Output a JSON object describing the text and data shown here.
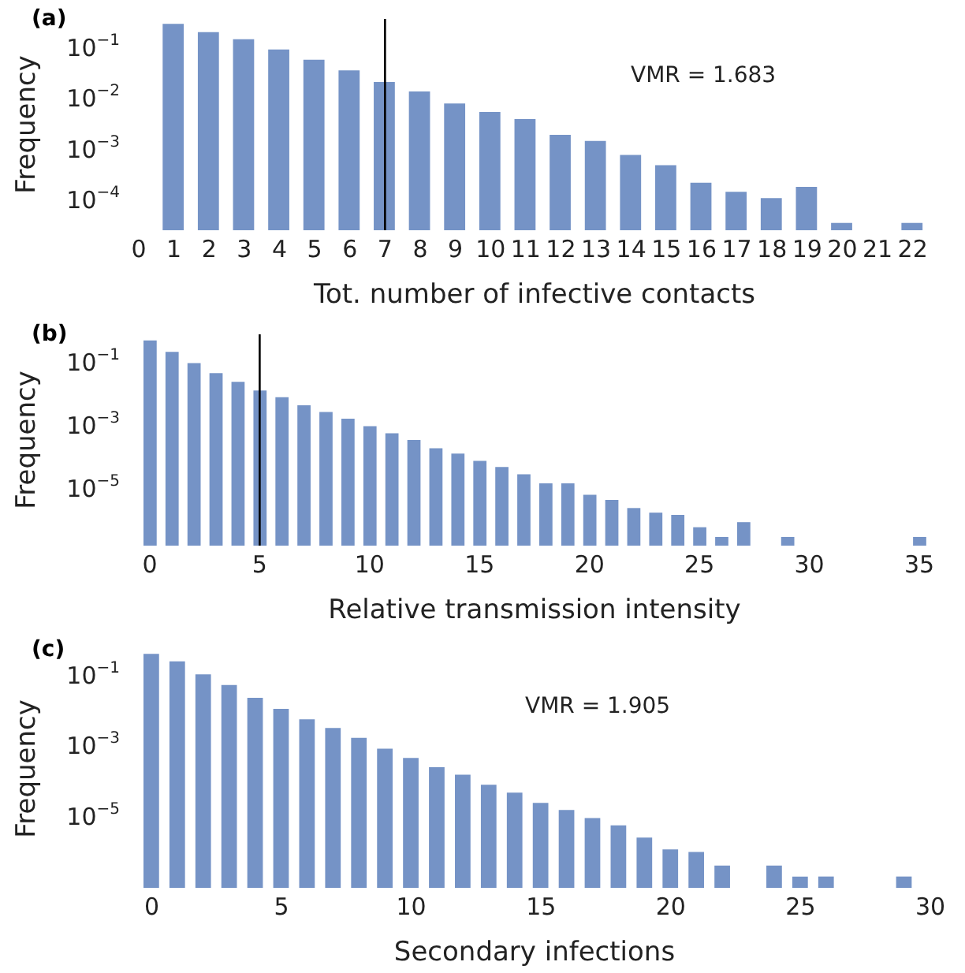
{
  "chart_data": [
    {
      "type": "bar",
      "title": "(a)",
      "xlabel": "Tot. number of infective contacts",
      "ylabel": "Frequency",
      "annotations": [
        "VMR = 1.683"
      ],
      "log": "y",
      "color": "#7593c6",
      "grid": false,
      "x": [
        1,
        2,
        3,
        4,
        5,
        6,
        7,
        8,
        9,
        10,
        11,
        12,
        13,
        14,
        15,
        16,
        17,
        18,
        19,
        20,
        22
      ],
      "values": [
        0.32,
        0.22,
        0.16,
        0.1,
        0.063,
        0.039,
        0.023,
        0.015,
        0.0087,
        0.0059,
        0.0043,
        0.0021,
        0.0016,
        0.00085,
        0.00053,
        0.00024,
        0.00016,
        0.00012,
        0.0002,
        3.9e-05,
        3.9e-05
      ],
      "xlim": [
        0,
        22.5
      ],
      "xticks": [
        0,
        1,
        2,
        3,
        4,
        5,
        6,
        7,
        8,
        9,
        10,
        11,
        12,
        13,
        14,
        15,
        16,
        17,
        18,
        19,
        20,
        21,
        22
      ],
      "ylim": [
        2.8e-05,
        0.4
      ],
      "yticks": [
        {
          "value": 0.1,
          "label": "10$^{−1}$"
        },
        {
          "value": 0.01,
          "label": "10$^{−2}$"
        },
        {
          "value": 0.001,
          "label": "10$^{−3}$"
        },
        {
          "value": 0.0001,
          "label": "10$^{−4}$"
        }
      ],
      "ref_lines": [
        {
          "axis": "x",
          "value": 7,
          "color": "#000000"
        }
      ]
    },
    {
      "type": "bar",
      "title": "(b)",
      "xlabel": "Relative transmission intensity",
      "ylabel": "Frequency",
      "log": "y",
      "color": "#7593c6",
      "grid": false,
      "x": [
        0,
        1,
        2,
        3,
        4,
        5,
        6,
        7,
        8,
        9,
        10,
        11,
        12,
        13,
        14,
        15,
        16,
        17,
        18,
        19,
        20,
        21,
        22,
        23,
        24,
        25,
        26,
        27,
        29,
        35
      ],
      "values": [
        0.58,
        0.25,
        0.11,
        0.053,
        0.028,
        0.015,
        0.0092,
        0.0051,
        0.0031,
        0.0019,
        0.0011,
        0.00066,
        0.0004,
        0.00022,
        0.00015,
        8.8e-05,
        5.6e-05,
        3.3e-05,
        1.7e-05,
        1.7e-05,
        7.4e-06,
        5.1e-06,
        2.8e-06,
        2e-06,
        1.7e-06,
        6.9e-07,
        3.4e-07,
        1e-06,
        3.4e-07,
        3.4e-07
      ],
      "xlim": [
        -0.5,
        35.5
      ],
      "xticks": [
        0,
        5,
        10,
        15,
        20,
        25,
        30,
        35
      ],
      "ylim": [
        1.8e-07,
        0.9
      ],
      "yticks": [
        {
          "value": 0.1,
          "label": "10$^{−1}$"
        },
        {
          "value": 0.001,
          "label": "10$^{−3}$"
        },
        {
          "value": 1e-05,
          "label": "10$^{−5}$"
        }
      ],
      "ref_lines": [
        {
          "axis": "x",
          "value": 5,
          "color": "#000000"
        }
      ]
    },
    {
      "type": "bar",
      "title": "(c)",
      "xlabel": "Secondary infections",
      "ylabel": "Frequency",
      "annotations": [
        "VMR = 1.905"
      ],
      "log": "y",
      "color": "#7593c6",
      "grid": false,
      "x": [
        0,
        1,
        2,
        3,
        4,
        5,
        6,
        7,
        8,
        9,
        10,
        11,
        12,
        13,
        14,
        15,
        16,
        17,
        18,
        19,
        20,
        21,
        22,
        24,
        25,
        26,
        29
      ],
      "values": [
        0.46,
        0.28,
        0.12,
        0.06,
        0.026,
        0.0126,
        0.0064,
        0.0036,
        0.0019,
        0.00093,
        0.00051,
        0.00028,
        0.00017,
        8.9e-05,
        5.3e-05,
        2.7e-05,
        1.7e-05,
        1e-05,
        6.2e-06,
        2.8e-06,
        1.3e-06,
        1.1e-06,
        4.5e-07,
        4.5e-07,
        2.2e-07,
        2.2e-07,
        2.2e-07
      ],
      "xlim": [
        -0.5,
        30
      ],
      "xticks": [
        0,
        5,
        10,
        15,
        20,
        25,
        30
      ],
      "ylim": [
        1.05e-07,
        0.6
      ],
      "yticks": [
        {
          "value": 0.1,
          "label": "10$^{−1}$"
        },
        {
          "value": 0.001,
          "label": "10$^{−3}$"
        },
        {
          "value": 1e-05,
          "label": "10$^{−5}$"
        }
      ]
    }
  ]
}
